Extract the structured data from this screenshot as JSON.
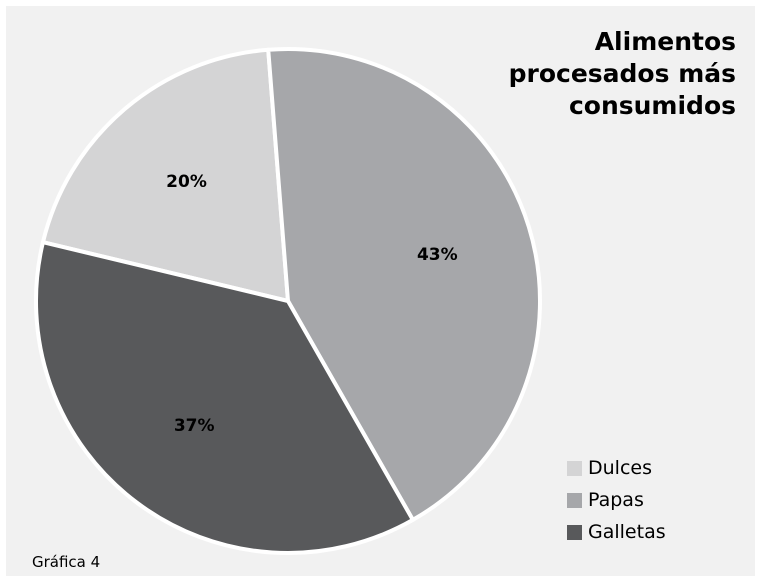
{
  "chart_data": {
    "type": "pie",
    "title": "Alimentos\nprocesados más\nconsumidos",
    "categories": [
      "Dulces",
      "Papas",
      "Galletas"
    ],
    "values": [
      20,
      43,
      37
    ],
    "value_labels": [
      "20%",
      "43%",
      "37%"
    ],
    "colors": [
      "#d4d4d5",
      "#a6a7aa",
      "#58595b"
    ],
    "legend_position": "bottom-right"
  },
  "caption": "Gráfica 4"
}
